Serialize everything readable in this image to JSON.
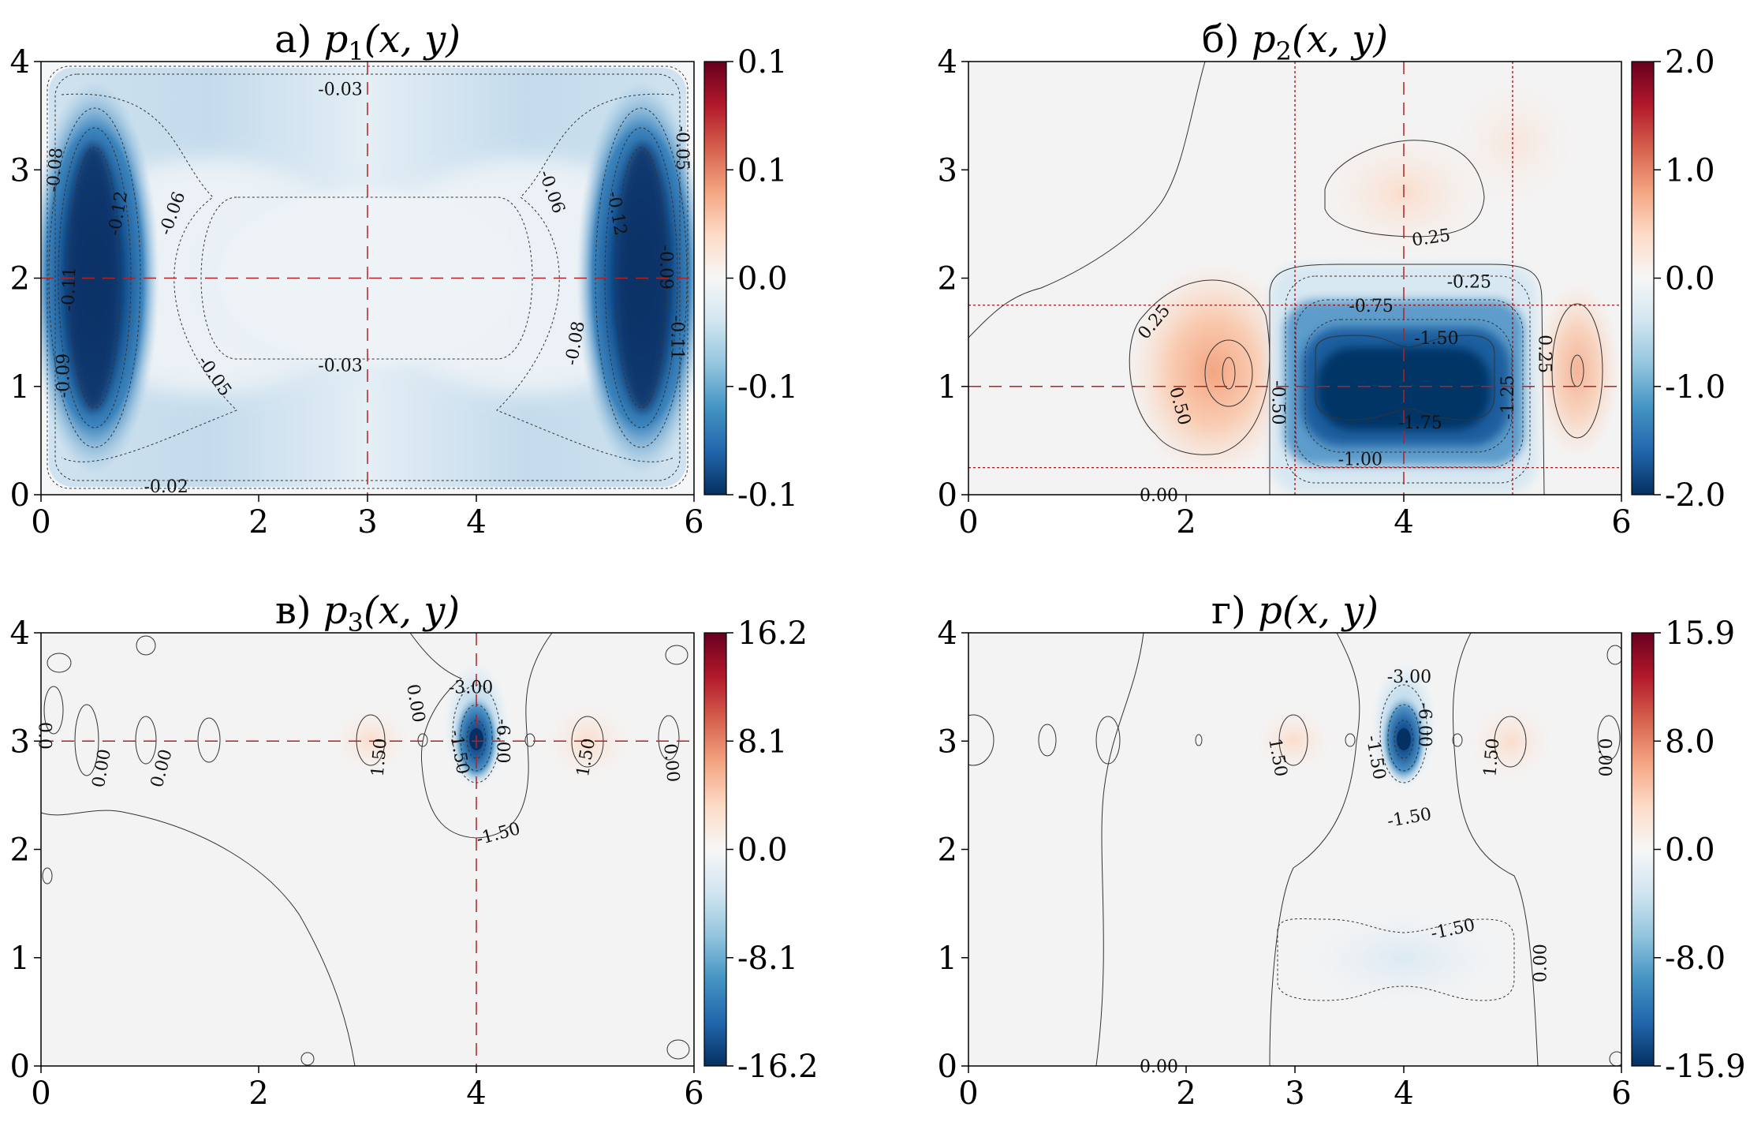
{
  "chart_data": [
    {
      "type": "heatmap",
      "title": "а) p₁(x, y)",
      "title_prefix": "а)",
      "title_func": "p",
      "title_sub": "1",
      "title_args": "(x, y)",
      "xlim": [
        0,
        6
      ],
      "ylim": [
        0,
        4
      ],
      "xticks": [
        "0",
        "2",
        "3",
        "4",
        "6"
      ],
      "yticks": [
        "0",
        "1",
        "2",
        "3",
        "4"
      ],
      "colorbar_ticks": [
        "0.1",
        "0.1",
        "0.0",
        "-0.1",
        "-0.1"
      ],
      "colorbar_range": [
        -0.1,
        0.1
      ],
      "colormap": "RdBu_r",
      "reference_lines": {
        "x": [
          3
        ],
        "y": [
          2
        ],
        "style": "dashed",
        "color": "#b22222"
      },
      "contour_labels": [
        {
          "text": "-0.03",
          "x": 2.75,
          "y": 3.75,
          "rot": 0
        },
        {
          "text": "-0.03",
          "x": 2.75,
          "y": 1.2,
          "rot": 0
        },
        {
          "text": "-0.02",
          "x": 1.15,
          "y": 0.08,
          "rot": 0
        },
        {
          "text": "-0.08",
          "x": 0.12,
          "y": 3.0,
          "rot": -85
        },
        {
          "text": "-0.12",
          "x": 0.7,
          "y": 2.6,
          "rot": -80
        },
        {
          "text": "-0.06",
          "x": 1.2,
          "y": 2.6,
          "rot": -70
        },
        {
          "text": "-0.11",
          "x": 0.25,
          "y": 1.9,
          "rot": -88
        },
        {
          "text": "-0.09",
          "x": 0.2,
          "y": 1.1,
          "rot": -90
        },
        {
          "text": "-0.05",
          "x": 1.6,
          "y": 1.1,
          "rot": 55
        },
        {
          "text": "-0.06",
          "x": 4.7,
          "y": 2.8,
          "rot": 70
        },
        {
          "text": "-0.12",
          "x": 5.3,
          "y": 2.6,
          "rot": 80
        },
        {
          "text": "-0.08",
          "x": 4.9,
          "y": 1.4,
          "rot": -80
        },
        {
          "text": "-0.09",
          "x": 5.75,
          "y": 2.1,
          "rot": 90
        },
        {
          "text": "-0.11",
          "x": 5.85,
          "y": 1.45,
          "rot": 90
        },
        {
          "text": "-0.05",
          "x": 5.9,
          "y": 3.2,
          "rot": 90
        }
      ]
    },
    {
      "type": "heatmap",
      "title": "б) p₂(x, y)",
      "title_prefix": "б)",
      "title_func": "p",
      "title_sub": "2",
      "title_args": "(x, y)",
      "xlim": [
        0,
        6
      ],
      "ylim": [
        0,
        4
      ],
      "xticks": [
        "0",
        "2",
        "4",
        "6"
      ],
      "yticks": [
        "0",
        "1",
        "2",
        "3",
        "4"
      ],
      "colorbar_ticks": [
        "2.0",
        "1.0",
        "0.0",
        "-1.0",
        "-2.0"
      ],
      "colorbar_range": [
        -2.0,
        2.0
      ],
      "colormap": "RdBu_r",
      "reference_lines": {
        "x": [
          4
        ],
        "y": [
          1
        ],
        "style": "dashed",
        "color": "#b22222"
      },
      "boundary_lines": {
        "x": [
          3,
          5
        ],
        "y": [
          1.75,
          0.25
        ],
        "style": "dotted",
        "color": "#8b0000"
      },
      "contour_labels": [
        {
          "text": "0.25",
          "x": 4.25,
          "y": 2.38,
          "rot": -8
        },
        {
          "text": "-0.25",
          "x": 4.6,
          "y": 1.97,
          "rot": 0
        },
        {
          "text": "-0.75",
          "x": 3.7,
          "y": 1.75,
          "rot": 0
        },
        {
          "text": "-1.50",
          "x": 4.3,
          "y": 1.45,
          "rot": 0
        },
        {
          "text": "-1.75",
          "x": 4.15,
          "y": 0.67,
          "rot": 0
        },
        {
          "text": "-1.00",
          "x": 3.6,
          "y": 0.33,
          "rot": 0
        },
        {
          "text": "-1.25",
          "x": 4.95,
          "y": 0.9,
          "rot": -90
        },
        {
          "text": "0.25",
          "x": 1.7,
          "y": 1.6,
          "rot": -50
        },
        {
          "text": "0.50",
          "x": 1.95,
          "y": 0.82,
          "rot": 75
        },
        {
          "text": "-0.50",
          "x": 2.85,
          "y": 0.85,
          "rot": 90
        },
        {
          "text": "0.25",
          "x": 5.3,
          "y": 1.3,
          "rot": 90
        },
        {
          "text": "0.00",
          "x": 1.75,
          "y": 0.0,
          "rot": 0
        }
      ]
    },
    {
      "type": "heatmap",
      "title": "в) p₃(x, y)",
      "title_prefix": "в)",
      "title_func": "p",
      "title_sub": "3",
      "title_args": "(x, y)",
      "xlim": [
        0,
        6
      ],
      "ylim": [
        0,
        4
      ],
      "xticks": [
        "0",
        "2",
        "4",
        "6"
      ],
      "yticks": [
        "0",
        "1",
        "2",
        "3",
        "4"
      ],
      "colorbar_ticks": [
        "16.2",
        "8.1",
        "0.0",
        "-8.1",
        "-16.2"
      ],
      "colorbar_range": [
        -16.2,
        16.2
      ],
      "colormap": "RdBu_r",
      "reference_lines": {
        "x": [
          4
        ],
        "y": [
          3
        ],
        "style": "dashed",
        "color": "#b22222"
      },
      "contour_labels": [
        {
          "text": "-3.00",
          "x": 3.95,
          "y": 3.5,
          "rot": 0
        },
        {
          "text": "0.00",
          "x": 3.45,
          "y": 3.35,
          "rot": 80
        },
        {
          "text": "-1.50",
          "x": 3.85,
          "y": 2.9,
          "rot": 80
        },
        {
          "text": "-6.00",
          "x": 4.25,
          "y": 3.0,
          "rot": 90
        },
        {
          "text": "-1.50",
          "x": 4.2,
          "y": 2.15,
          "rot": -15
        },
        {
          "text": "1.50",
          "x": 3.1,
          "y": 2.85,
          "rot": -85
        },
        {
          "text": "1.50",
          "x": 5.0,
          "y": 2.85,
          "rot": -80
        },
        {
          "text": "0.00",
          "x": 0.55,
          "y": 2.75,
          "rot": -80
        },
        {
          "text": "0.00",
          "x": 1.1,
          "y": 2.75,
          "rot": -75
        },
        {
          "text": "0.00",
          "x": 5.8,
          "y": 2.8,
          "rot": 85
        },
        {
          "text": "0.0",
          "x": 0.04,
          "y": 3.05,
          "rot": 90
        }
      ]
    },
    {
      "type": "heatmap",
      "title": "г) p(x, y)",
      "title_prefix": "г)",
      "title_func": "p",
      "title_sub": "",
      "title_args": "(x, y)",
      "xlim": [
        0,
        6
      ],
      "ylim": [
        0,
        4
      ],
      "xticks": [
        "0",
        "2",
        "3",
        "4",
        "6"
      ],
      "yticks": [
        "0",
        "1",
        "2",
        "3",
        "4"
      ],
      "colorbar_ticks": [
        "15.9",
        "8.0",
        "0.0",
        "-8.0",
        "-15.9"
      ],
      "colorbar_range": [
        -15.9,
        15.9
      ],
      "colormap": "RdBu_r",
      "contour_labels": [
        {
          "text": "-3.00",
          "x": 4.05,
          "y": 3.6,
          "rot": 0
        },
        {
          "text": "1.50",
          "x": 2.85,
          "y": 2.85,
          "rot": 80
        },
        {
          "text": "-1.50",
          "x": 3.75,
          "y": 2.85,
          "rot": 80
        },
        {
          "text": "-6.00",
          "x": 4.2,
          "y": 3.15,
          "rot": 90
        },
        {
          "text": "-1.50",
          "x": 4.05,
          "y": 2.3,
          "rot": -10
        },
        {
          "text": "1.50",
          "x": 4.8,
          "y": 2.85,
          "rot": -85
        },
        {
          "text": "0.00",
          "x": 5.85,
          "y": 2.85,
          "rot": 90
        },
        {
          "text": "-1.50",
          "x": 4.45,
          "y": 1.27,
          "rot": -12
        },
        {
          "text": "0.00",
          "x": 5.25,
          "y": 0.95,
          "rot": -90
        },
        {
          "text": "0.00",
          "x": 1.75,
          "y": 0.0,
          "rot": 0
        }
      ]
    }
  ]
}
